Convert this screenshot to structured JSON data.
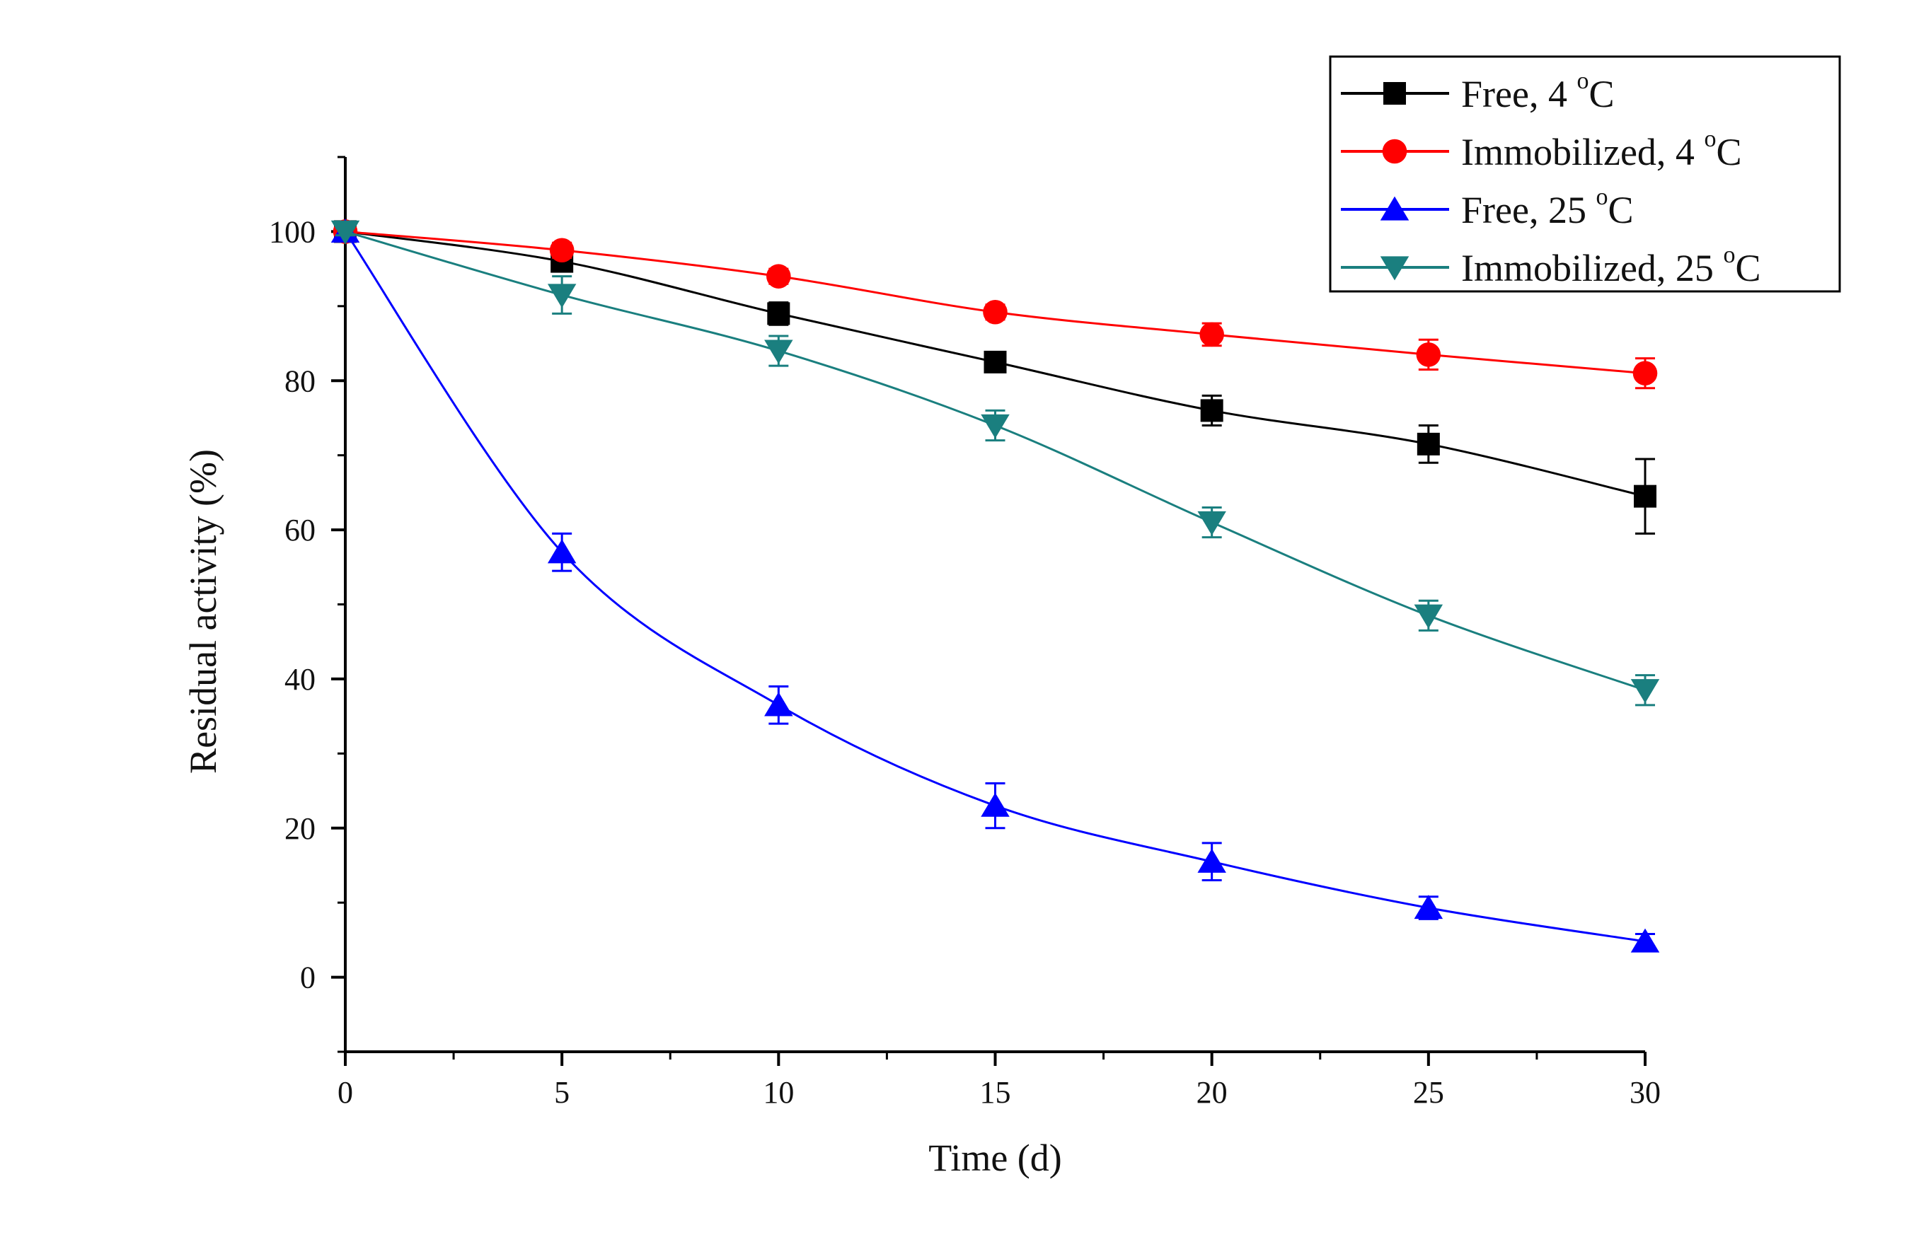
{
  "chart_data": {
    "type": "line",
    "title": "",
    "xlabel": "Time (d)",
    "ylabel": "Residual activity (%)",
    "xlim": [
      0,
      30
    ],
    "ylim": [
      -10,
      110
    ],
    "x_ticks": [
      "0",
      "5",
      "10",
      "15",
      "20",
      "25",
      "30"
    ],
    "y_ticks": [
      "0",
      "20",
      "40",
      "60",
      "80",
      "100"
    ],
    "legend_position": "top-right",
    "x": [
      0,
      5,
      10,
      15,
      20,
      25,
      30
    ],
    "series": [
      {
        "name": "Free, 4 °C",
        "label_main": "Free, 4 ",
        "label_sup": "o",
        "label_unit": "C",
        "color": "#000000",
        "marker": "square",
        "values": [
          100,
          96,
          89,
          82.5,
          76,
          71.5,
          64.5
        ],
        "errors": [
          0.5,
          1,
          1.5,
          1,
          2,
          2.5,
          5
        ]
      },
      {
        "name": "Immobilized, 4 °C",
        "label_main": "Immobilized, 4 ",
        "label_sup": "o",
        "label_unit": "C",
        "color": "#ff0000",
        "marker": "circle",
        "values": [
          100,
          97.5,
          94,
          89.2,
          86.2,
          83.5,
          81
        ],
        "errors": [
          0.5,
          1,
          1,
          1,
          1.5,
          2,
          2
        ]
      },
      {
        "name": "Free, 25 °C",
        "label_main": "Free, 25 ",
        "label_sup": "o",
        "label_unit": "C",
        "color": "#0000ff",
        "marker": "triangle-up",
        "values": [
          100,
          57,
          36.5,
          23,
          15.5,
          9.3,
          4.8
        ],
        "errors": [
          1,
          2.5,
          2.5,
          3,
          2.5,
          1.5,
          1
        ]
      },
      {
        "name": "Immobilized, 25 °C",
        "label_main": "Immobilized, 25 ",
        "label_sup": "o",
        "label_unit": "C",
        "color": "#1a7f7f",
        "marker": "triangle-down",
        "values": [
          100,
          91.5,
          84,
          74,
          61,
          48.5,
          38.5
        ],
        "errors": [
          0.5,
          2.5,
          2,
          2,
          2,
          2,
          2
        ]
      }
    ]
  }
}
